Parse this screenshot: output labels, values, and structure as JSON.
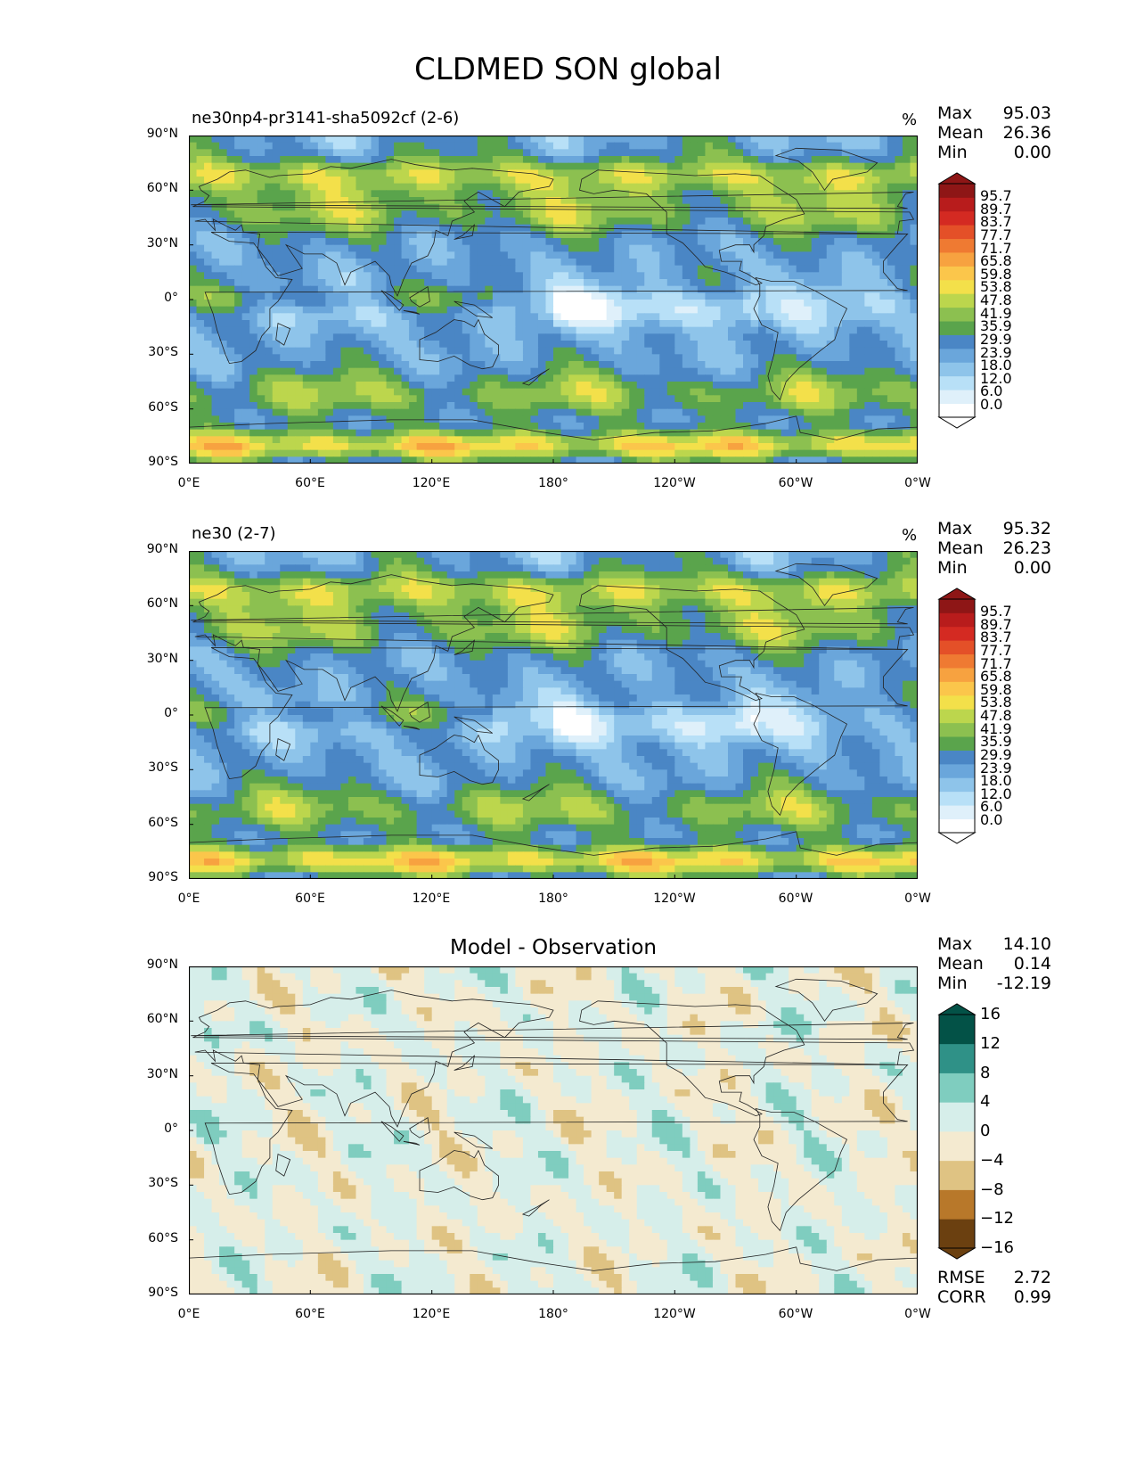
{
  "figure_title": "CLDMED SON global",
  "panels": [
    {
      "title": "ne30np4-pr3141-sha5092cf (2-6)",
      "unit": "%",
      "stats": [
        {
          "label": "Max",
          "value": "95.03"
        },
        {
          "label": "Mean",
          "value": "26.36"
        },
        {
          "label": "Min",
          "value": "0.00"
        }
      ]
    },
    {
      "title": "ne30 (2-7)",
      "unit": "%",
      "stats": [
        {
          "label": "Max",
          "value": "95.32"
        },
        {
          "label": "Mean",
          "value": "26.23"
        },
        {
          "label": "Min",
          "value": "0.00"
        }
      ]
    },
    {
      "title": "Model - Observation",
      "unit": "",
      "stats": [
        {
          "label": "Max",
          "value": "14.10"
        },
        {
          "label": "Mean",
          "value": "0.14"
        },
        {
          "label": "Min",
          "value": "-12.19"
        }
      ],
      "extra_stats": [
        {
          "label": "RMSE",
          "value": "2.72"
        },
        {
          "label": "CORR",
          "value": "0.99"
        }
      ]
    }
  ],
  "axes": {
    "x_ticks": [
      "0°E",
      "60°E",
      "120°E",
      "180°",
      "120°W",
      "60°W",
      "0°W"
    ],
    "y_ticks": [
      "90°N",
      "60°N",
      "30°N",
      "0°",
      "30°S",
      "60°S",
      "90°S"
    ]
  },
  "colorbars": {
    "cloud": {
      "labels": [
        "95.7",
        "89.7",
        "83.7",
        "77.7",
        "71.7",
        "65.8",
        "59.8",
        "53.8",
        "47.8",
        "41.9",
        "35.9",
        "29.9",
        "23.9",
        "18.0",
        "12.0",
        "6.0",
        "0.0"
      ],
      "colors": [
        "#ffffff",
        "#dff0fa",
        "#b8e0f7",
        "#8ec4ea",
        "#6aa6db",
        "#4a86c5",
        "#5aa44c",
        "#8cc050",
        "#bcd64d",
        "#f3e04a",
        "#fbc64b",
        "#f7a240",
        "#ef7a32",
        "#e45028",
        "#d42a22",
        "#b81c1c",
        "#8e1616"
      ]
    },
    "diff": {
      "labels": [
        "16",
        "12",
        "8",
        "4",
        "0",
        "−4",
        "−8",
        "−12",
        "−16"
      ],
      "colors": [
        "#6b4010",
        "#b8782a",
        "#dfc383",
        "#f4ead0",
        "#d6eeea",
        "#7fcdbf",
        "#2f9187",
        "#035247"
      ]
    }
  },
  "chart_data": {
    "type": "heatmap",
    "title": "CLDMED SON global",
    "x_axis": {
      "range_deg_east": [
        0,
        360
      ],
      "ticks": [
        "0°E",
        "60°E",
        "120°E",
        "180°",
        "120°W",
        "60°W",
        "0°W"
      ]
    },
    "y_axis": {
      "range_deg_north": [
        -90,
        90
      ],
      "ticks": [
        "90°N",
        "60°N",
        "30°N",
        "0°",
        "30°S",
        "60°S",
        "90°S"
      ]
    },
    "panels": [
      {
        "title": "ne30np4-pr3141-sha5092cf (2-6)",
        "unit": "%",
        "max": 95.03,
        "mean": 26.36,
        "min": 0.0,
        "colorbar_levels": [
          0.0,
          6.0,
          12.0,
          18.0,
          23.9,
          29.9,
          35.9,
          41.9,
          47.8,
          53.8,
          59.8,
          65.8,
          71.7,
          77.7,
          83.7,
          89.7,
          95.7
        ],
        "colorbar_extend": "both"
      },
      {
        "title": "ne30 (2-7)",
        "unit": "%",
        "max": 95.32,
        "mean": 26.23,
        "min": 0.0,
        "colorbar_levels": [
          0.0,
          6.0,
          12.0,
          18.0,
          23.9,
          29.9,
          35.9,
          41.9,
          47.8,
          53.8,
          59.8,
          65.8,
          71.7,
          77.7,
          83.7,
          89.7,
          95.7
        ],
        "colorbar_extend": "both"
      },
      {
        "title": "Model - Observation",
        "max": 14.1,
        "mean": 0.14,
        "min": -12.19,
        "rmse": 2.72,
        "corr": 0.99,
        "colorbar_levels": [
          -16,
          -12,
          -8,
          -4,
          0,
          4,
          8,
          12,
          16
        ],
        "colorbar_extend": "both"
      }
    ]
  }
}
